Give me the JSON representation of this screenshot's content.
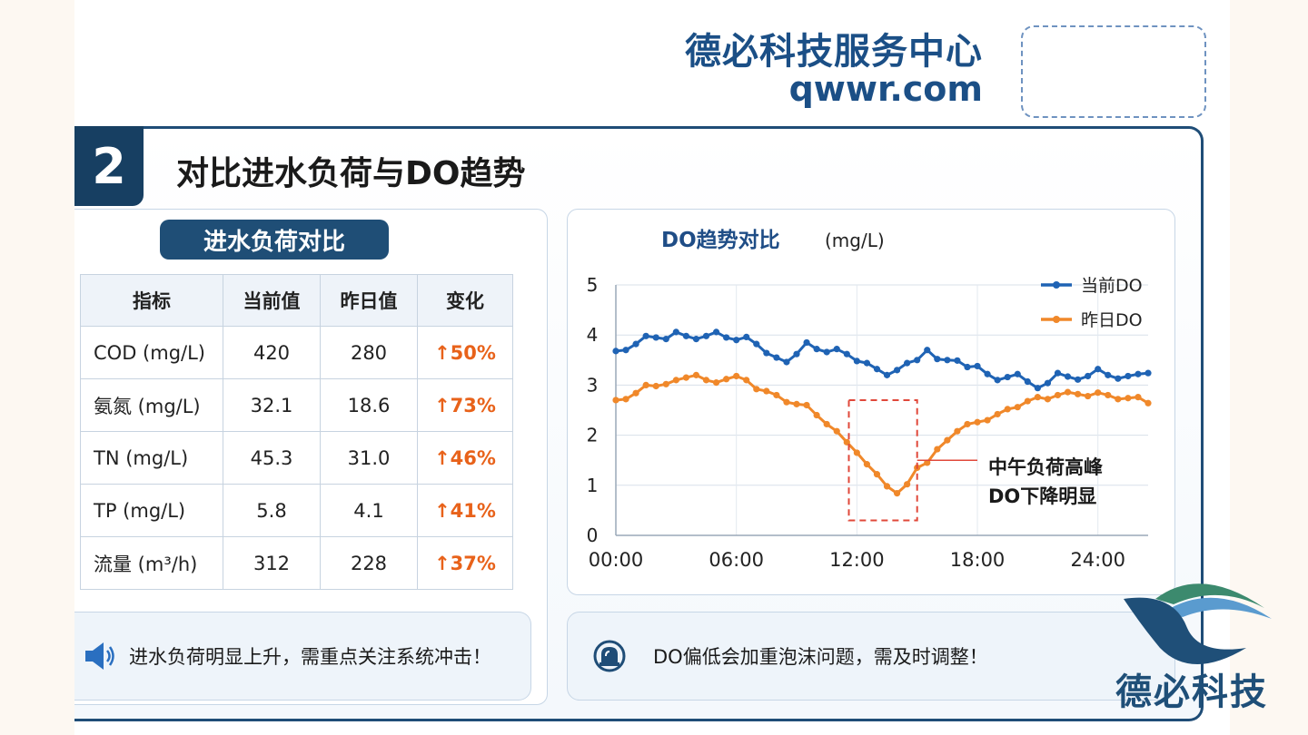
{
  "header": {
    "brand_name": "德必科技服务中心",
    "brand_url": "qwwr.com"
  },
  "section": {
    "number": "2",
    "title": "对比进水负荷与DO趋势"
  },
  "table": {
    "title": "进水负荷对比",
    "headers": [
      "指标",
      "当前值",
      "昨日值",
      "变化"
    ],
    "rows": [
      [
        "COD (mg/L)",
        "420",
        "280",
        "↑50%"
      ],
      [
        "氨氮 (mg/L)",
        "32.1",
        "18.6",
        "↑73%"
      ],
      [
        "TN (mg/L)",
        "45.3",
        "31.0",
        "↑46%"
      ],
      [
        "TP (mg/L)",
        "5.8",
        "4.1",
        "↑41%"
      ],
      [
        "流量 (m³/h)",
        "312",
        "228",
        "↑37%"
      ]
    ]
  },
  "chart_data": {
    "type": "line",
    "title": "DO趋势对比",
    "unit": "(mg/L)",
    "xlabel": "",
    "ylabel": "",
    "ylim": [
      0,
      5
    ],
    "xlim": [
      0,
      26.5
    ],
    "xticks": [
      0,
      6,
      12,
      18,
      24
    ],
    "xtick_labels": [
      "00:00",
      "06:00",
      "12:00",
      "18:00",
      "24:00"
    ],
    "yticks": [
      0,
      1,
      2,
      3,
      4,
      5
    ],
    "grid": true,
    "legend": "top-right",
    "series": [
      {
        "name": "当前DO",
        "color": "#1f63b4",
        "x": [
          0,
          0.5,
          1.0,
          1.5,
          2.0,
          2.5,
          3.0,
          3.5,
          4.0,
          4.5,
          5.0,
          5.5,
          6.0,
          6.5,
          7.0,
          7.5,
          8.0,
          8.5,
          9.0,
          9.5,
          10.0,
          10.5,
          11.0,
          11.5,
          12.0,
          12.5,
          13.0,
          13.5,
          14.0,
          14.5,
          15.0,
          15.5,
          16.0,
          16.5,
          17.0,
          17.5,
          18.0,
          18.5,
          19.0,
          19.5,
          20.0,
          20.5,
          21.0,
          21.5,
          22.0,
          22.5,
          23.0,
          23.5,
          24.0,
          24.5,
          25.0,
          25.5,
          26.0,
          26.5
        ],
        "y": [
          3.68,
          3.7,
          3.82,
          3.98,
          3.95,
          3.92,
          4.06,
          3.98,
          3.92,
          3.98,
          4.06,
          3.95,
          3.9,
          3.96,
          3.82,
          3.64,
          3.55,
          3.46,
          3.62,
          3.85,
          3.72,
          3.66,
          3.72,
          3.62,
          3.48,
          3.44,
          3.32,
          3.2,
          3.3,
          3.44,
          3.5,
          3.7,
          3.52,
          3.5,
          3.49,
          3.36,
          3.38,
          3.22,
          3.1,
          3.16,
          3.22,
          3.07,
          2.94,
          3.04,
          3.24,
          3.17,
          3.11,
          3.18,
          3.32,
          3.2,
          3.13,
          3.18,
          3.22,
          3.24
        ]
      },
      {
        "name": "昨日DO",
        "color": "#f0882a",
        "x": [
          0,
          0.5,
          1.0,
          1.5,
          2.0,
          2.5,
          3.0,
          3.5,
          4.0,
          4.5,
          5.0,
          5.5,
          6.0,
          6.5,
          7.0,
          7.5,
          8.0,
          8.5,
          9.0,
          9.5,
          10.0,
          10.5,
          11.0,
          11.5,
          12.0,
          12.5,
          13.0,
          13.5,
          14.0,
          14.5,
          15.0,
          15.5,
          16.0,
          16.5,
          17.0,
          17.5,
          18.0,
          18.5,
          19.0,
          19.5,
          20.0,
          20.5,
          21.0,
          21.5,
          22.0,
          22.5,
          23.0,
          23.5,
          24.0,
          24.5,
          25.0,
          25.5,
          26.0,
          26.5
        ],
        "y": [
          2.7,
          2.72,
          2.84,
          3.0,
          2.98,
          3.02,
          3.1,
          3.15,
          3.2,
          3.1,
          3.05,
          3.12,
          3.18,
          3.1,
          2.92,
          2.88,
          2.8,
          2.66,
          2.62,
          2.6,
          2.4,
          2.22,
          2.08,
          1.86,
          1.65,
          1.42,
          1.22,
          0.98,
          0.84,
          1.02,
          1.35,
          1.45,
          1.72,
          1.9,
          2.08,
          2.22,
          2.26,
          2.3,
          2.42,
          2.52,
          2.56,
          2.68,
          2.76,
          2.72,
          2.8,
          2.86,
          2.82,
          2.78,
          2.85,
          2.8,
          2.72,
          2.74,
          2.76,
          2.64
        ]
      }
    ],
    "annotation": {
      "lines": [
        "中午负荷高峰",
        "DO下降明显"
      ],
      "x_range": [
        11.6,
        15.0
      ],
      "y_range": [
        0.3,
        2.7
      ]
    }
  },
  "notes": {
    "left": {
      "icon": "speaker-icon",
      "text": "进水负荷明显上升，需重点关注系统冲击！"
    },
    "right": {
      "icon": "alarm-icon",
      "text": "DO偏低会加重泡沫问题，需及时调整！"
    }
  },
  "logo": {
    "text": "德必科技",
    "colors": [
      "#1f4f78",
      "#3c8a6e",
      "#5a9bcf"
    ]
  }
}
